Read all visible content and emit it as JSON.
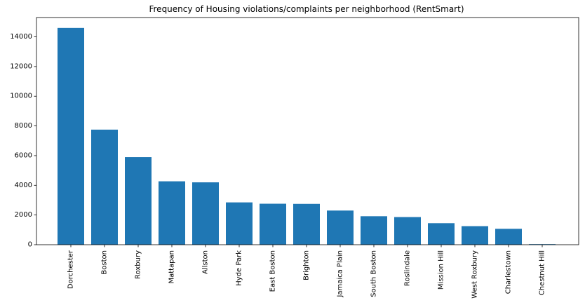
{
  "chart_data": {
    "type": "bar",
    "title": "Frequency of Housing violations/complaints per neighborhood (RentSmart)",
    "xlabel": "",
    "ylabel": "",
    "categories": [
      "Dorchester",
      "Boston",
      "Roxbury",
      "Mattapan",
      "Allston",
      "Hyde Park",
      "East Boston",
      "Brighton",
      "Jamaica Plain",
      "South Boston",
      "Roslindale",
      "Mission Hill",
      "West Roxbury",
      "Charlestown",
      "Chestnut Hill"
    ],
    "values": [
      14600,
      7750,
      5900,
      4270,
      4200,
      2850,
      2760,
      2750,
      2300,
      1920,
      1860,
      1450,
      1250,
      1070,
      40
    ],
    "ylim": [
      0,
      15300
    ],
    "yticks": [
      0,
      2000,
      4000,
      6000,
      8000,
      10000,
      12000,
      14000
    ],
    "grid": false,
    "legend": "none",
    "colors": {
      "bar": "#1f77b4",
      "axis": "#000000",
      "background": "#ffffff"
    }
  }
}
